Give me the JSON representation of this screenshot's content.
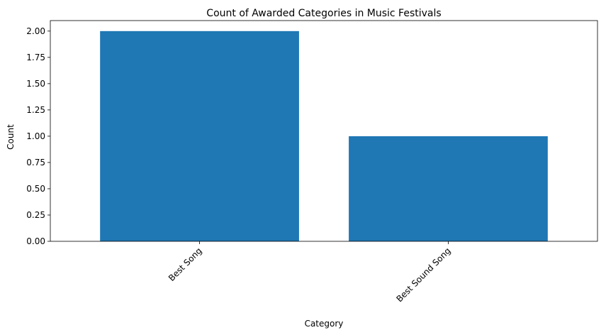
{
  "chart_data": {
    "type": "bar",
    "title": "Count of Awarded Categories in Music Festivals",
    "xlabel": "Category",
    "ylabel": "Count",
    "categories": [
      "Best Song",
      "Best Sound Song"
    ],
    "values": [
      2,
      1
    ],
    "ylim": [
      0,
      2.1
    ],
    "yticks": [
      "0.00",
      "0.25",
      "0.50",
      "0.75",
      "1.00",
      "1.25",
      "1.50",
      "1.75",
      "2.00"
    ],
    "bar_color": "#1f77b4",
    "grid": false,
    "xtick_rotation": 45
  }
}
